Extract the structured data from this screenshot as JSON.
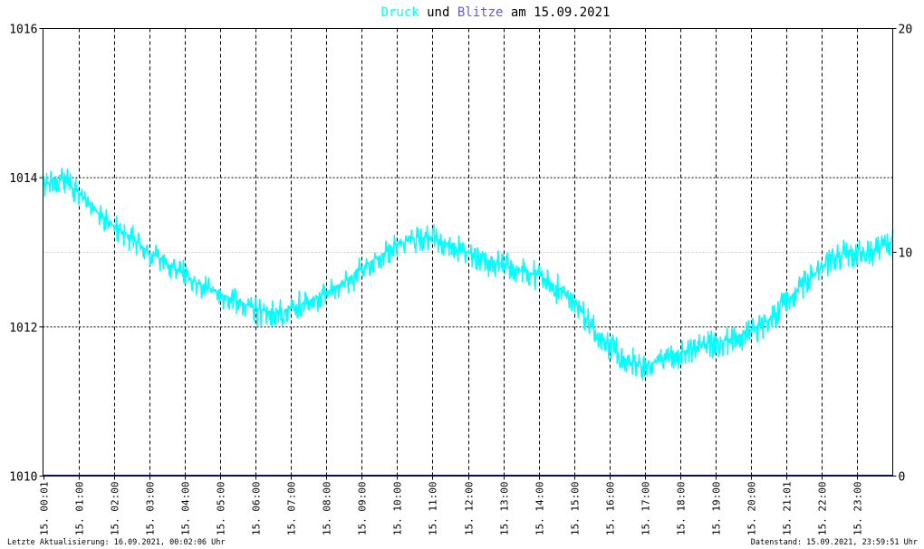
{
  "title": {
    "word1": "Druck",
    "word2": "und",
    "word3": "Blitze",
    "word4": "am",
    "date": "15.09.2021"
  },
  "colors": {
    "pressure": "#00ffff",
    "lightning": "#6a5acd",
    "grid": "#000000",
    "baseline": "#191970",
    "text": "#000000"
  },
  "footer": {
    "left": "Letzte Aktualisierung: 16.09.2021, 00:02:06 Uhr",
    "right": "Datenstand: 15.09.2021, 23:59:51 Uhr"
  },
  "chart_data": {
    "type": "line",
    "title": "Druck und Blitze am 15.09.2021",
    "ylim": [
      1010,
      1016
    ],
    "y2lim": [
      0,
      20
    ],
    "ytick_labels": [
      "1016",
      "1014",
      "1012",
      "1010"
    ],
    "y2tick_labels": [
      "20",
      "10",
      "0"
    ],
    "xlim_hours": [
      0,
      24
    ],
    "xtick_labels": [
      "15. 00:01",
      "15. 01:00",
      "15. 02:00",
      "15. 03:00",
      "15. 04:00",
      "15. 05:00",
      "15. 06:00",
      "15. 07:00",
      "15. 08:00",
      "15. 09:00",
      "15. 10:00",
      "15. 11:00",
      "15. 12:00",
      "15. 13:00",
      "15. 14:00",
      "15. 15:00",
      "15. 16:00",
      "15. 17:00",
      "15. 18:00",
      "15. 19:00",
      "15. 20:00",
      "15. 21:01",
      "15. 22:00",
      "15. 23:00"
    ],
    "xtick_hours": [
      0.0,
      1.0,
      2.0,
      3.0,
      4.0,
      5.0,
      6.0,
      7.0,
      8.0,
      9.0,
      10.0,
      11.0,
      12.0,
      13.0,
      14.0,
      15.0,
      16.0,
      17.0,
      18.0,
      19.0,
      20.0,
      21.0,
      22.0,
      23.0
    ],
    "series": [
      {
        "name": "Druck",
        "axis": "left",
        "x_hours": [
          0,
          0.5,
          1,
          1.5,
          2,
          2.5,
          3,
          3.5,
          4,
          4.5,
          5,
          5.5,
          6,
          6.5,
          7,
          7.5,
          8,
          8.5,
          9,
          9.5,
          10,
          10.5,
          11,
          11.5,
          12,
          12.5,
          13,
          13.5,
          14,
          14.5,
          15,
          15.5,
          16,
          16.5,
          17,
          17.5,
          18,
          18.5,
          19,
          19.5,
          20,
          20.5,
          21,
          21.5,
          22,
          22.5,
          23,
          23.5,
          24
        ],
        "values": [
          1013.9,
          1014.0,
          1013.8,
          1013.55,
          1013.35,
          1013.2,
          1013.0,
          1012.85,
          1012.7,
          1012.55,
          1012.45,
          1012.35,
          1012.25,
          1012.2,
          1012.25,
          1012.35,
          1012.45,
          1012.6,
          1012.8,
          1012.95,
          1013.1,
          1013.2,
          1013.2,
          1013.1,
          1013.0,
          1012.9,
          1012.85,
          1012.75,
          1012.7,
          1012.55,
          1012.35,
          1012.0,
          1011.75,
          1011.55,
          1011.5,
          1011.55,
          1011.65,
          1011.75,
          1011.8,
          1011.85,
          1011.95,
          1012.1,
          1012.35,
          1012.6,
          1012.8,
          1012.95,
          1013.0,
          1013.05,
          1013.15
        ]
      },
      {
        "name": "Blitze",
        "axis": "right",
        "x_hours": [
          0,
          24
        ],
        "values": [
          0,
          0
        ]
      }
    ],
    "grid": true,
    "legend": "title"
  }
}
